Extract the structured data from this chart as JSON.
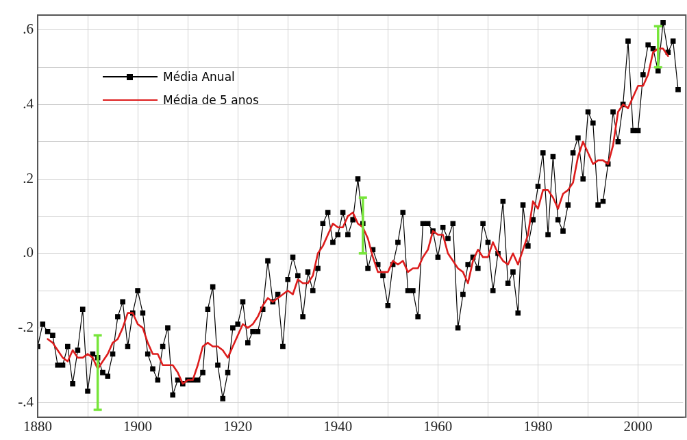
{
  "chart_data": {
    "type": "line",
    "x": [
      1880,
      1881,
      1882,
      1883,
      1884,
      1885,
      1886,
      1887,
      1888,
      1889,
      1890,
      1891,
      1892,
      1893,
      1894,
      1895,
      1896,
      1897,
      1898,
      1899,
      1900,
      1901,
      1902,
      1903,
      1904,
      1905,
      1906,
      1907,
      1908,
      1909,
      1910,
      1911,
      1912,
      1913,
      1914,
      1915,
      1916,
      1917,
      1918,
      1919,
      1920,
      1921,
      1922,
      1923,
      1924,
      1925,
      1926,
      1927,
      1928,
      1929,
      1930,
      1931,
      1932,
      1933,
      1934,
      1935,
      1936,
      1937,
      1938,
      1939,
      1940,
      1941,
      1942,
      1943,
      1944,
      1945,
      1946,
      1947,
      1948,
      1949,
      1950,
      1951,
      1952,
      1953,
      1954,
      1955,
      1956,
      1957,
      1958,
      1959,
      1960,
      1961,
      1962,
      1963,
      1964,
      1965,
      1966,
      1967,
      1968,
      1969,
      1970,
      1971,
      1972,
      1973,
      1974,
      1975,
      1976,
      1977,
      1978,
      1979,
      1980,
      1981,
      1982,
      1983,
      1984,
      1985,
      1986,
      1987,
      1988,
      1989,
      1990,
      1991,
      1992,
      1993,
      1994,
      1995,
      1996,
      1997,
      1998,
      1999,
      2000,
      2001,
      2002,
      2003,
      2004,
      2005,
      2006,
      2007,
      2008
    ],
    "series": [
      {
        "name": "Média Anual",
        "color": "#000000",
        "marker": "square",
        "values": [
          -0.25,
          -0.19,
          -0.21,
          -0.22,
          -0.3,
          -0.3,
          -0.25,
          -0.35,
          -0.26,
          -0.15,
          -0.37,
          -0.27,
          -0.28,
          -0.32,
          -0.33,
          -0.27,
          -0.17,
          -0.13,
          -0.25,
          -0.16,
          -0.1,
          -0.16,
          -0.27,
          -0.31,
          -0.34,
          -0.25,
          -0.2,
          -0.38,
          -0.34,
          -0.35,
          -0.34,
          -0.34,
          -0.34,
          -0.32,
          -0.15,
          -0.09,
          -0.3,
          -0.39,
          -0.32,
          -0.2,
          -0.19,
          -0.13,
          -0.24,
          -0.21,
          -0.21,
          -0.15,
          -0.02,
          -0.13,
          -0.11,
          -0.25,
          -0.07,
          -0.01,
          -0.06,
          -0.17,
          -0.05,
          -0.1,
          -0.04,
          0.08,
          0.11,
          0.03,
          0.05,
          0.11,
          0.05,
          0.09,
          0.2,
          0.08,
          -0.04,
          0.01,
          -0.03,
          -0.06,
          -0.14,
          -0.03,
          0.03,
          0.11,
          -0.1,
          -0.1,
          -0.17,
          0.08,
          0.08,
          0.06,
          -0.01,
          0.07,
          0.04,
          0.08,
          -0.2,
          -0.11,
          -0.03,
          -0.01,
          -0.04,
          0.08,
          0.03,
          -0.1,
          0.0,
          0.14,
          -0.08,
          -0.05,
          -0.16,
          0.13,
          0.02,
          0.09,
          0.18,
          0.27,
          0.05,
          0.26,
          0.09,
          0.06,
          0.13,
          0.27,
          0.31,
          0.2,
          0.38,
          0.35,
          0.13,
          0.14,
          0.24,
          0.38,
          0.3,
          0.4,
          0.57,
          0.33,
          0.33,
          0.48,
          0.56,
          0.55,
          0.49,
          0.62,
          0.54,
          0.57,
          0.44
        ]
      },
      {
        "name": "Média de 5 anos",
        "color": "#dd1c1c",
        "marker": "none",
        "values": [
          null,
          null,
          -0.23,
          -0.24,
          -0.26,
          -0.28,
          -0.29,
          -0.26,
          -0.28,
          -0.28,
          -0.27,
          -0.28,
          -0.31,
          -0.29,
          -0.27,
          -0.24,
          -0.23,
          -0.2,
          -0.16,
          -0.16,
          -0.19,
          -0.2,
          -0.24,
          -0.27,
          -0.27,
          -0.3,
          -0.3,
          -0.3,
          -0.32,
          -0.35,
          -0.34,
          -0.34,
          -0.3,
          -0.25,
          -0.24,
          -0.25,
          -0.25,
          -0.26,
          -0.28,
          -0.25,
          -0.22,
          -0.19,
          -0.2,
          -0.19,
          -0.17,
          -0.14,
          -0.12,
          -0.13,
          -0.12,
          -0.11,
          -0.1,
          -0.11,
          -0.07,
          -0.08,
          -0.08,
          -0.06,
          0.0,
          0.02,
          0.05,
          0.08,
          0.07,
          0.07,
          0.1,
          0.11,
          0.08,
          0.07,
          0.04,
          -0.01,
          -0.05,
          -0.05,
          -0.05,
          -0.02,
          -0.03,
          -0.02,
          -0.05,
          -0.04,
          -0.04,
          -0.01,
          0.01,
          0.06,
          0.05,
          0.05,
          0.0,
          -0.02,
          -0.04,
          -0.05,
          -0.08,
          -0.02,
          0.01,
          -0.01,
          -0.01,
          0.03,
          0.0,
          -0.02,
          -0.03,
          0.0,
          -0.03,
          0.01,
          0.05,
          0.14,
          0.12,
          0.17,
          0.17,
          0.15,
          0.12,
          0.16,
          0.17,
          0.19,
          0.26,
          0.3,
          0.27,
          0.24,
          0.25,
          0.25,
          0.24,
          0.29,
          0.38,
          0.4,
          0.39,
          0.42,
          0.45,
          0.45,
          0.48,
          0.54,
          0.55,
          0.55,
          0.53,
          null,
          null
        ],
        "errors": [
          null,
          null,
          null,
          null,
          null,
          null,
          null,
          null,
          null,
          null,
          null,
          null,
          [
            -0.42,
            -0.22
          ],
          null,
          null,
          null,
          null,
          null,
          null,
          null,
          null,
          null,
          null,
          null,
          null,
          null,
          null,
          null,
          null,
          null,
          null,
          null,
          null,
          null,
          null,
          null,
          null,
          null,
          null,
          null,
          null,
          null,
          null,
          null,
          null,
          null,
          null,
          null,
          null,
          null,
          null,
          null,
          null,
          null,
          null,
          null,
          null,
          null,
          null,
          null,
          null,
          null,
          null,
          null,
          null,
          [
            0.0,
            0.15
          ],
          null,
          null,
          null,
          null,
          null,
          null,
          null,
          null,
          null,
          null,
          null,
          null,
          null,
          null,
          null,
          null,
          null,
          null,
          null,
          null,
          null,
          null,
          null,
          null,
          null,
          null,
          null,
          null,
          null,
          null,
          null,
          null,
          null,
          null,
          null,
          null,
          null,
          null,
          null,
          null,
          null,
          null,
          null,
          null,
          null,
          null,
          null,
          null,
          null,
          null,
          null,
          null,
          null,
          null,
          null,
          null,
          null,
          null,
          [
            0.5,
            0.61
          ],
          null,
          null,
          null,
          null
        ]
      }
    ],
    "xlim": [
      1880,
      2009
    ],
    "xticks": [
      1880,
      {
        "value": 1890,
        "label": null
      },
      1900,
      {
        "value": 1910,
        "label": null
      },
      1920,
      {
        "value": 1930,
        "label": null
      },
      1940,
      {
        "value": 1950,
        "label": null
      },
      1960,
      {
        "value": 1970,
        "label": null
      },
      1980,
      {
        "value": 1990,
        "label": null
      },
      2000
    ],
    "ylim": [
      -0.44,
      0.64
    ],
    "yticks": [
      {
        "value": -0.4,
        "label": "-.4"
      },
      {
        "value": -0.3,
        "label": null
      },
      {
        "value": -0.2,
        "label": "-.2"
      },
      {
        "value": -0.1,
        "label": null
      },
      {
        "value": 0,
        "label": ".0"
      },
      {
        "value": 0.1,
        "label": null
      },
      {
        "value": 0.2,
        "label": ".2"
      },
      {
        "value": 0.3,
        "label": null
      },
      {
        "value": 0.4,
        "label": ".4"
      },
      {
        "value": 0.5,
        "label": null
      },
      {
        "value": 0.6,
        "label": ".6"
      }
    ],
    "grid": true,
    "legend": "top left",
    "line_style": "solid"
  }
}
